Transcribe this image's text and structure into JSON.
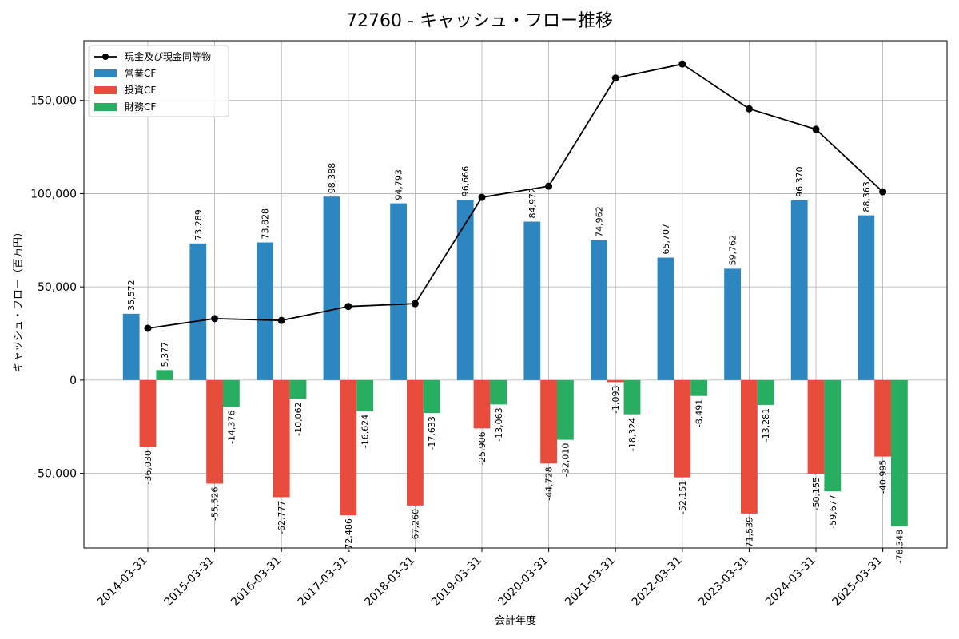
{
  "chart_data": {
    "type": "bar",
    "title": "72760 - キャッシュ・フロー推移",
    "xlabel": "会計年度",
    "ylabel": "キャッシュ・フロー（百万円）",
    "categories": [
      "2014-03-31",
      "2015-03-31",
      "2016-03-31",
      "2017-03-31",
      "2018-03-31",
      "2019-03-31",
      "2020-03-31",
      "2021-03-31",
      "2022-03-31",
      "2023-03-31",
      "2024-03-31",
      "2025-03-31"
    ],
    "series": [
      {
        "name": "営業CF",
        "kind": "bar",
        "color": "#2e86c1",
        "values": [
          35572,
          73289,
          73828,
          98388,
          94793,
          96666,
          84972,
          74962,
          65707,
          59762,
          96370,
          88363
        ]
      },
      {
        "name": "投資CF",
        "kind": "bar",
        "color": "#e74c3c",
        "values": [
          -36030,
          -55526,
          -62777,
          -72486,
          -67260,
          -25906,
          -44728,
          -1093,
          -52151,
          -71539,
          -50155,
          -40995
        ]
      },
      {
        "name": "財務CF",
        "kind": "bar",
        "color": "#27ae60",
        "values": [
          5377,
          -14376,
          -10062,
          -16624,
          -17633,
          -13063,
          -32010,
          -18324,
          -8491,
          -13281,
          -59677,
          -78348
        ]
      },
      {
        "name": "現金及び現金同等物",
        "kind": "line",
        "color": "#000000",
        "values": [
          27800,
          33000,
          32000,
          39500,
          41000,
          98000,
          104000,
          162000,
          169500,
          145500,
          134500,
          101000
        ]
      }
    ],
    "ylim": [
      -90000,
      182000
    ],
    "yticks": [
      -50000,
      0,
      50000,
      100000,
      150000
    ],
    "ytick_labels": [
      "-50,000",
      "0",
      "50,000",
      "100,000",
      "150,000"
    ],
    "grid": true,
    "legend": "top-left"
  }
}
